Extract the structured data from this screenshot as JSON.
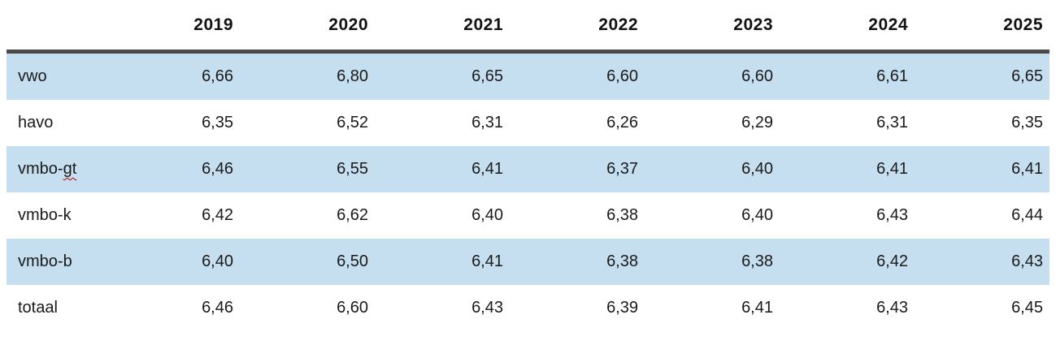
{
  "accent_colors": {
    "row_highlight": "#c6dff0",
    "header_rule": "#4a4a4a",
    "spellcheck_squiggle": "#c00000"
  },
  "table": {
    "corner_label": "",
    "columns": [
      "2019",
      "2020",
      "2021",
      "2022",
      "2023",
      "2024",
      "2025"
    ],
    "rows": [
      {
        "label": "vwo",
        "values": [
          "6,66",
          "6,80",
          "6,65",
          "6,60",
          "6,60",
          "6,61",
          "6,65"
        ]
      },
      {
        "label": "havo",
        "values": [
          "6,35",
          "6,52",
          "6,31",
          "6,26",
          "6,29",
          "6,31",
          "6,35"
        ]
      },
      {
        "label": "vmbo-gt",
        "label_parts": {
          "before": "vmbo-",
          "squiggle": "gt"
        },
        "values": [
          "6,46",
          "6,55",
          "6,41",
          "6,37",
          "6,40",
          "6,41",
          "6,41"
        ]
      },
      {
        "label": "vmbo-k",
        "values": [
          "6,42",
          "6,62",
          "6,40",
          "6,38",
          "6,40",
          "6,43",
          "6,44"
        ]
      },
      {
        "label": "vmbo-b",
        "values": [
          "6,40",
          "6,50",
          "6,41",
          "6,38",
          "6,38",
          "6,42",
          "6,43"
        ]
      },
      {
        "label": "totaal",
        "values": [
          "6,46",
          "6,60",
          "6,43",
          "6,39",
          "6,41",
          "6,43",
          "6,45"
        ]
      }
    ]
  }
}
